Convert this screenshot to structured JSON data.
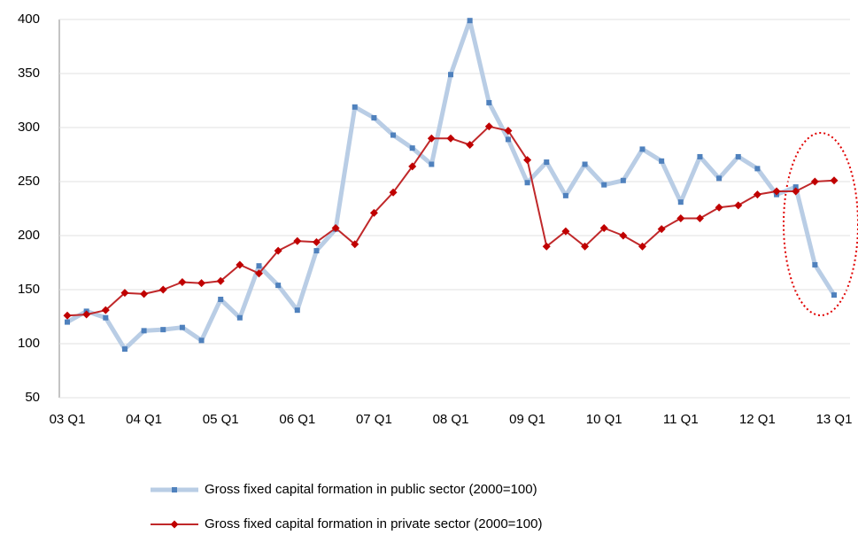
{
  "chart_data": {
    "type": "line",
    "categories": [
      "03 Q1",
      null,
      null,
      null,
      "04 Q1",
      null,
      null,
      null,
      "05 Q1",
      null,
      null,
      null,
      "06 Q1",
      null,
      null,
      null,
      "07 Q1",
      null,
      null,
      null,
      "08 Q1",
      null,
      null,
      null,
      "09 Q1",
      null,
      null,
      null,
      "10 Q1",
      null,
      null,
      null,
      "11 Q1",
      null,
      null,
      null,
      "12 Q1",
      null,
      null,
      null,
      "13 Q1"
    ],
    "series": [
      {
        "name": "Gross fixed capital formation in public sector (2000=100)",
        "color": "#4f81bd",
        "line_color": "#b9cde5",
        "values": [
          120,
          130,
          124,
          95,
          112,
          113,
          115,
          103,
          141,
          124,
          172,
          154,
          131,
          186,
          206,
          319,
          309,
          293,
          281,
          266,
          349,
          399,
          323,
          289,
          249,
          268,
          237,
          266,
          247,
          251,
          280,
          269,
          231,
          273,
          253,
          273,
          262,
          238,
          245,
          173,
          145
        ]
      },
      {
        "name": "Gross fixed capital formation in private sector (2000=100)",
        "color": "#c00000",
        "line_color": "#c0282a",
        "values": [
          126,
          127,
          131,
          147,
          146,
          150,
          157,
          156,
          158,
          173,
          165,
          186,
          195,
          194,
          207,
          192,
          221,
          240,
          264,
          290,
          290,
          284,
          301,
          297,
          270,
          190,
          204,
          190,
          207,
          200,
          190,
          206,
          216,
          216,
          226,
          228,
          238,
          241,
          241,
          250,
          251
        ]
      }
    ],
    "ylim": [
      50,
      400
    ],
    "yticks": [
      50,
      100,
      150,
      200,
      250,
      300,
      350,
      400
    ],
    "grid": true
  }
}
